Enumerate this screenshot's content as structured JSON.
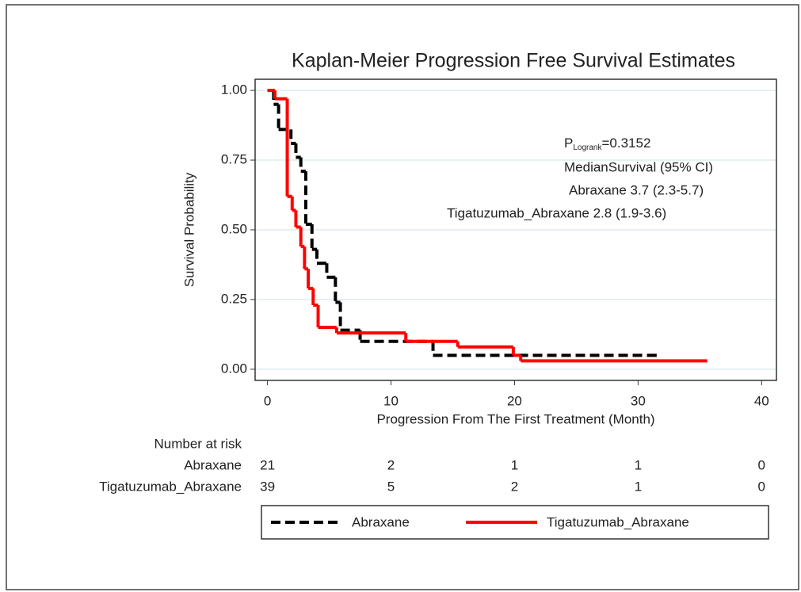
{
  "chart_data": {
    "type": "step",
    "title": "Kaplan-Meier Progression Free Survival Estimates",
    "xlabel": "Progression From The First Treatment (Month)",
    "ylabel": "Survival Probability",
    "xlim": [
      -1,
      41.2
    ],
    "ylim": [
      -0.04,
      1.04
    ],
    "xticks": [
      0,
      10,
      20,
      30,
      40
    ],
    "yticks": [
      {
        "value": 0,
        "label": "0.00"
      },
      {
        "value": 0.25,
        "label": "0.25"
      },
      {
        "value": 0.5,
        "label": "0.50"
      },
      {
        "value": 0.75,
        "label": "0.75"
      },
      {
        "value": 1,
        "label": "1.00"
      }
    ],
    "grid": true,
    "series": [
      {
        "name": "Abraxane",
        "color": "#000000",
        "dash": true,
        "x": [
          0,
          0.5,
          0.9,
          1.9,
          2.3,
          2.7,
          3.1,
          3.6,
          4.0,
          4.8,
          5.5,
          5.9,
          7.5,
          13.4,
          31.5
        ],
        "values": [
          1.0,
          0.95,
          0.86,
          0.81,
          0.76,
          0.71,
          0.52,
          0.43,
          0.38,
          0.33,
          0.24,
          0.14,
          0.1,
          0.05,
          0.05
        ]
      },
      {
        "name": "Tigatuzumab_Abraxane",
        "color": "#ff0000",
        "dash": false,
        "x": [
          0,
          0.6,
          1.6,
          2.0,
          2.3,
          2.7,
          3.0,
          3.3,
          3.7,
          4.1,
          5.6,
          11.2,
          15.4,
          19.9,
          20.5,
          35.6
        ],
        "values": [
          1.0,
          0.97,
          0.62,
          0.57,
          0.51,
          0.44,
          0.36,
          0.29,
          0.23,
          0.15,
          0.13,
          0.1,
          0.08,
          0.05,
          0.03,
          0.03
        ]
      }
    ],
    "annotation": {
      "p_label": "P",
      "p_subscript": "Logrank",
      "p_value": "=0.3152",
      "lines": [
        "MedianSurvival (95% CI)",
        "Abraxane 3.7 (2.3-5.7)",
        "Tigatuzumab_Abraxane 2.8 (1.9-3.6)"
      ]
    },
    "risk_table": {
      "title": "Number at risk",
      "counts": [
        [
          21,
          2,
          1,
          1,
          0
        ],
        [
          39,
          5,
          2,
          1,
          0
        ]
      ]
    }
  }
}
